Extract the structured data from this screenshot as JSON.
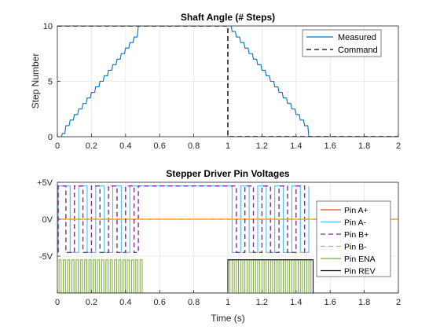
{
  "chart_data": [
    {
      "type": "line",
      "title": "Shaft Angle (# Steps)",
      "xlabel": "",
      "ylabel": "Step Number",
      "xlim": [
        0,
        2
      ],
      "ylim": [
        0,
        10
      ],
      "xticks": [
        "0",
        "0.2",
        "0.4",
        "0.6",
        "0.8",
        "1",
        "1.2",
        "1.4",
        "1.6",
        "1.8",
        "2"
      ],
      "yticks": [
        "0",
        "5",
        "10"
      ],
      "grid": true,
      "legend_position": "top-right",
      "series": [
        {
          "name": "Measured",
          "color": "#0072BD",
          "style": "solid",
          "shape": "stair-smoothed",
          "x": [
            0,
            0.005,
            0.03,
            0.05,
            0.075,
            0.1,
            0.125,
            0.15,
            0.175,
            0.2,
            0.225,
            0.25,
            0.275,
            0.3,
            0.325,
            0.35,
            0.375,
            0.4,
            0.425,
            0.45,
            0.475,
            1.0,
            1.025,
            1.05,
            1.075,
            1.1,
            1.125,
            1.15,
            1.175,
            1.2,
            1.225,
            1.25,
            1.275,
            1.3,
            1.325,
            1.35,
            1.375,
            1.4,
            1.425,
            1.45,
            1.475,
            2.0
          ],
          "y": [
            0,
            0,
            0.3,
            1,
            1.5,
            2,
            2.5,
            3,
            3.5,
            4,
            4.5,
            5,
            5.5,
            6,
            6.5,
            7,
            7.5,
            8,
            8.5,
            9,
            10,
            10,
            9.5,
            9,
            8.5,
            8,
            7.5,
            7,
            6.5,
            6,
            5.5,
            5,
            4.5,
            4,
            3.5,
            3,
            2.5,
            2,
            1.5,
            1,
            0,
            0
          ]
        },
        {
          "name": "Command",
          "color": "#000000",
          "style": "dashed",
          "x": [
            0,
            1,
            1,
            2
          ],
          "y": [
            10,
            10,
            0,
            0
          ]
        }
      ]
    },
    {
      "type": "line",
      "title": "Stepper Driver Pin Voltages",
      "xlabel": "Time (s)",
      "ylabel": "",
      "xlim": [
        0,
        2
      ],
      "ylim": [
        -10,
        5
      ],
      "xticks": [
        "0",
        "0.2",
        "0.4",
        "0.6",
        "0.8",
        "1",
        "1.2",
        "1.4",
        "1.6",
        "1.8",
        "2"
      ],
      "yticks": [
        "+5V",
        "0V",
        "-5V"
      ],
      "ytick_values": [
        5,
        0,
        -5
      ],
      "grid": true,
      "legend_position": "right",
      "series": [
        {
          "name": "Pin A+",
          "color": "#D95319",
          "style": "solid",
          "x": [
            0,
            2
          ],
          "y": [
            0,
            0
          ]
        },
        {
          "name": "Pin A-",
          "color": "#4DBEEE",
          "style": "solid",
          "x": [
            0.005,
            0.005,
            0.075,
            0.075,
            0.125,
            0.125,
            0.175,
            0.175,
            0.225,
            0.225,
            0.275,
            0.275,
            0.325,
            0.325,
            0.375,
            0.375,
            0.425,
            0.425,
            0.475,
            0.475,
            1.0,
            1.0,
            1.025,
            1.025,
            1.075,
            1.075,
            1.125,
            1.125,
            1.175,
            1.175,
            1.225,
            1.225,
            1.275,
            1.275,
            1.325,
            1.325,
            1.375,
            1.375,
            1.425,
            1.425,
            1.475,
            1.475
          ],
          "y": [
            -4.5,
            4.5,
            4.5,
            -4.5,
            -4.5,
            4.5,
            4.5,
            -4.5,
            -4.5,
            4.5,
            4.5,
            -4.5,
            -4.5,
            4.5,
            4.5,
            -4.5,
            -4.5,
            4.5,
            4.5,
            4.5,
            4.5,
            4.5,
            4.5,
            -4.5,
            -4.5,
            4.5,
            4.5,
            -4.5,
            -4.5,
            4.5,
            4.5,
            -4.5,
            -4.5,
            4.5,
            4.5,
            -4.5,
            -4.5,
            4.5,
            4.5,
            -4.5,
            -4.5,
            4.5
          ]
        },
        {
          "name": "Pin B+",
          "color": "#7E2F8E",
          "style": "dashed",
          "x": [
            0.005,
            0.005,
            0.05,
            0.05,
            0.1,
            0.1,
            0.15,
            0.15,
            0.2,
            0.2,
            0.25,
            0.25,
            0.3,
            0.3,
            0.35,
            0.35,
            0.4,
            0.4,
            0.45,
            0.45,
            0.475,
            0.475,
            1.0,
            1.0,
            1.05,
            1.05,
            1.1,
            1.1,
            1.15,
            1.15,
            1.2,
            1.2,
            1.25,
            1.25,
            1.3,
            1.3,
            1.35,
            1.35,
            1.4,
            1.4,
            1.45,
            1.45
          ],
          "y": [
            -4.5,
            4.5,
            4.5,
            -4.5,
            -4.5,
            4.5,
            4.5,
            -4.5,
            -4.5,
            4.5,
            4.5,
            -4.5,
            -4.5,
            4.5,
            4.5,
            -4.5,
            -4.5,
            4.5,
            4.5,
            -4.5,
            -4.5,
            4.5,
            4.5,
            4.5,
            4.5,
            -4.5,
            -4.5,
            4.5,
            4.5,
            -4.5,
            -4.5,
            4.5,
            4.5,
            -4.5,
            -4.5,
            4.5,
            4.5,
            -4.5,
            -4.5,
            4.5,
            4.5,
            -4.5
          ]
        },
        {
          "name": "Pin B-",
          "color": "#EDB120",
          "style": "dashed",
          "x": [
            0,
            2
          ],
          "y": [
            0,
            0
          ]
        },
        {
          "name": "Pin ENA",
          "color": "#77AC30",
          "style": "solid",
          "shape": "pwm",
          "segments": [
            [
              0.01,
              0.5
            ],
            [
              1.0,
              1.5
            ]
          ],
          "period": 0.025,
          "high": -5.5,
          "low": -10
        },
        {
          "name": "Pin REV",
          "color": "#000000",
          "style": "solid",
          "x": [
            0,
            1,
            1,
            1.5,
            1.5,
            2
          ],
          "y": [
            -10,
            -10,
            -5.5,
            -5.5,
            -10,
            -10
          ]
        }
      ]
    }
  ]
}
